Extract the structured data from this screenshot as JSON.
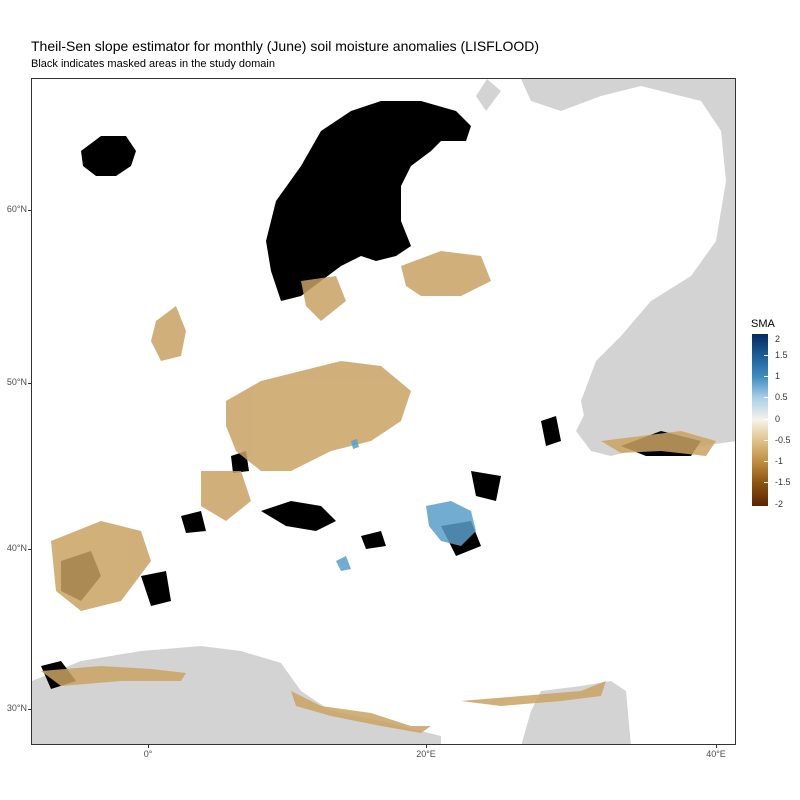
{
  "title": "Theil-Sen slope estimator for monthly (June) soil moisture anomalies (LISFLOOD)",
  "subtitle": "Black indicates masked areas in the study domain",
  "axes": {
    "y_ticks": [
      "60°N",
      "50°N",
      "40°N",
      "30°N"
    ],
    "x_ticks": [
      "0°",
      "20°E",
      "40°E"
    ]
  },
  "legend": {
    "title": "SMA",
    "labels": [
      "2",
      "1.5",
      "1",
      "0.5",
      "0",
      "-0.5",
      "-1",
      "-1.5",
      "-2"
    ],
    "colors": [
      "#062a5e",
      "#3f8dbf",
      "#f6f3ea",
      "#bc8a3d",
      "#5b2402"
    ]
  },
  "colors": {
    "masked": "#000000",
    "outside_domain": "#d3d3d3",
    "negative_trend": "#c9a263",
    "positive_trend": "#5a9ec9"
  }
}
